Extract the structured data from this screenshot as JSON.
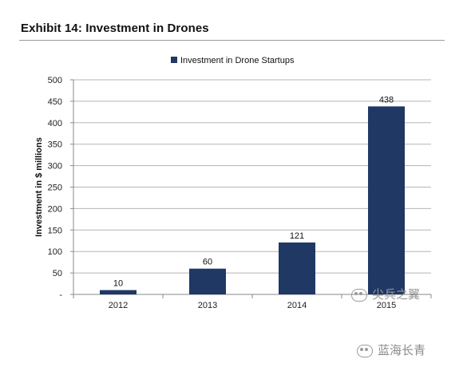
{
  "header": {
    "exhibit_title": "Exhibit 14: Investment in Drones"
  },
  "chart_data": {
    "type": "bar",
    "categories": [
      "2012",
      "2013",
      "2014",
      "2015"
    ],
    "series": [
      {
        "name": "Investment in Drone Startups",
        "values": [
          10,
          60,
          121,
          438
        ],
        "color": "#1f3864"
      }
    ],
    "data_labels": [
      "10",
      "60",
      "121",
      "438"
    ],
    "title": "",
    "xlabel": "",
    "ylabel": "Investment in $ millions",
    "ylim": [
      0,
      500
    ],
    "yticks": [
      0,
      50,
      100,
      150,
      200,
      250,
      300,
      350,
      400,
      450,
      500
    ],
    "ytick_labels": [
      "-",
      "50",
      "100",
      "150",
      "200",
      "250",
      "300",
      "350",
      "400",
      "450",
      "500"
    ],
    "grid": true,
    "legend": "top"
  },
  "watermarks": {
    "overlay_text": "尖兵之翼",
    "footer_text": "蓝海长青"
  },
  "colors": {
    "bar": "#1f3864",
    "grid": "#b5b5b5",
    "axis": "#8a8a8a"
  }
}
